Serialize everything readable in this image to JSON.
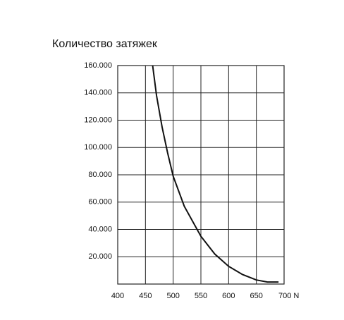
{
  "chart_data": {
    "type": "line",
    "title": "Количество затяжек",
    "x": [
      463,
      470,
      480,
      490,
      500,
      520,
      550,
      575,
      600,
      625,
      650,
      670,
      690
    ],
    "series": [
      {
        "name": null,
        "color": "#111111",
        "values": [
          160000,
          138000,
          115000,
          96000,
          79000,
          57000,
          35000,
          22000,
          13000,
          7000,
          3000,
          1500,
          1500
        ]
      }
    ],
    "xlim": [
      400,
      700
    ],
    "xticks": [
      400,
      450,
      500,
      550,
      600,
      650,
      {
        "value": 700,
        "label": "700 N"
      }
    ],
    "ylim": [
      0,
      160000
    ],
    "yticks": [
      {
        "value": 20000,
        "label": "20.000"
      },
      {
        "value": 40000,
        "label": "40.000"
      },
      {
        "value": 60000,
        "label": "60.000"
      },
      {
        "value": 80000,
        "label": "80.000"
      },
      {
        "value": 100000,
        "label": "100.000"
      },
      {
        "value": 120000,
        "label": "120.000"
      },
      {
        "value": 140000,
        "label": "140.000"
      },
      {
        "value": 160000,
        "label": "160.000"
      }
    ],
    "grid": true
  }
}
